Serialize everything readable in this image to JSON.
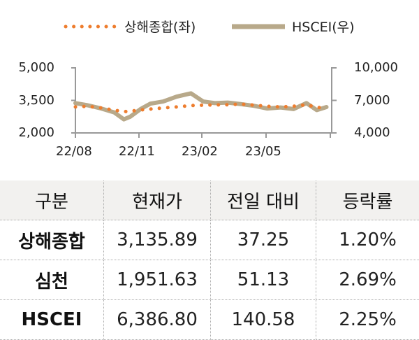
{
  "chart_data": {
    "type": "line",
    "legend_position": "top",
    "x_tick_labels": [
      "22/08",
      "22/11",
      "23/02",
      "23/05"
    ],
    "left_axis": {
      "ylim": [
        2000,
        5000
      ],
      "tick_labels": [
        "5,000",
        "3,500",
        "2,000"
      ]
    },
    "right_axis": {
      "ylim": [
        4000,
        10000
      ],
      "tick_labels": [
        "10,000",
        "7,000",
        "4,000"
      ]
    },
    "x": [
      "2022-08-01",
      "2022-08-20",
      "2022-09-10",
      "2022-09-30",
      "2022-10-15",
      "2022-10-25",
      "2022-11-10",
      "2022-11-25",
      "2022-12-15",
      "2023-01-05",
      "2023-01-27",
      "2023-02-15",
      "2023-03-05",
      "2023-03-25",
      "2023-04-15",
      "2023-05-05",
      "2023-05-25",
      "2023-06-15",
      "2023-07-05",
      "2023-07-25",
      "2023-08-10",
      "2023-08-25"
    ],
    "series": [
      {
        "name": "상해종합(좌)",
        "axis": "left",
        "style": "dotted",
        "color": "#ee7d2e",
        "values": [
          3200,
          3230,
          3150,
          3050,
          2980,
          3000,
          3060,
          3100,
          3150,
          3200,
          3260,
          3280,
          3290,
          3300,
          3330,
          3280,
          3230,
          3200,
          3230,
          3300,
          3180,
          3140
        ]
      },
      {
        "name": "HSCEI(우)",
        "axis": "right",
        "style": "thick",
        "color": "#b8a98a",
        "values": [
          6750,
          6550,
          6250,
          5900,
          5250,
          5500,
          6200,
          6700,
          6900,
          7350,
          7650,
          6900,
          6750,
          6800,
          6650,
          6500,
          6250,
          6350,
          6200,
          6750,
          6100,
          6390
        ]
      }
    ]
  },
  "table": {
    "headers": [
      "구분",
      "현재가",
      "전일 대비",
      "등락률"
    ],
    "rows": [
      [
        "상해종합",
        "3,135.89",
        "37.25",
        "1.20%"
      ],
      [
        "심천",
        "1,951.63",
        "51.13",
        "2.69%"
      ],
      [
        "HSCEI",
        "6,386.80",
        "140.58",
        "2.25%"
      ]
    ]
  }
}
